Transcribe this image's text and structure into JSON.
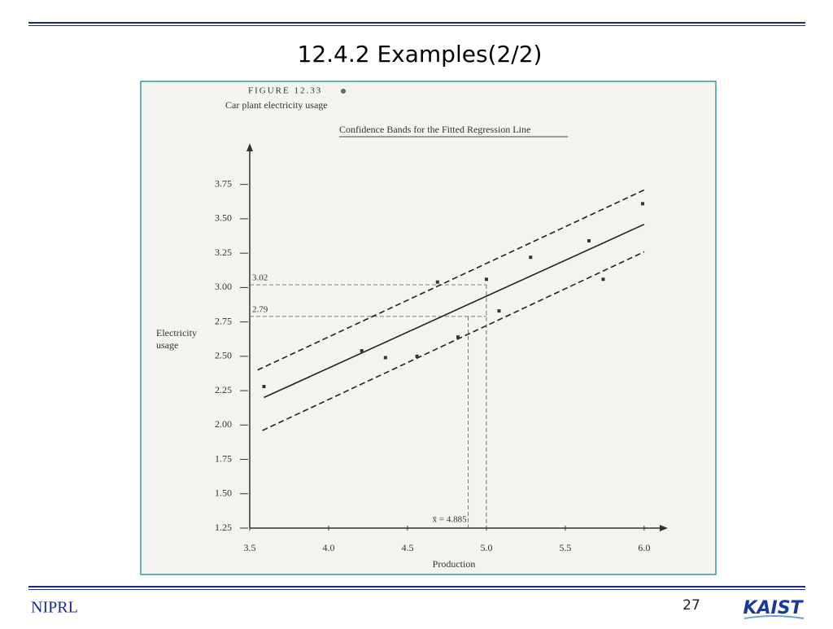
{
  "slide": {
    "title": "12.4.2 Examples(2/2)",
    "footer_left": "NIPRL",
    "page_number": "27",
    "logo": "KAIST"
  },
  "chart_data": {
    "type": "scatter",
    "figure_label": "FIGURE 12.33",
    "subtitle": "Car plant electricity usage",
    "title": "Confidence Bands for the Fitted Regression Line",
    "ylabel": [
      "Electricity",
      "usage"
    ],
    "xlabel": "Production",
    "xlim": [
      3.5,
      6.15
    ],
    "ylim": [
      1.25,
      4.05
    ],
    "xticks": [
      3.5,
      {
        "value": 4,
        "label": "4.0"
      },
      4.5,
      {
        "value": 5,
        "label": "5.0"
      },
      5.5,
      {
        "value": 6,
        "label": "6.0"
      }
    ],
    "yticks": [
      1.25,
      {
        "value": 1.5,
        "label": "1.50"
      },
      1.75,
      {
        "value": 2,
        "label": "2.00"
      },
      2.25,
      {
        "value": 2.5,
        "label": "2.50"
      },
      2.75,
      {
        "value": 3,
        "label": "3.00"
      },
      3.25,
      {
        "value": 3.5,
        "label": "3.50"
      },
      3.75
    ],
    "points": {
      "color": "#333333",
      "x": [
        3.59,
        4.21,
        4.36,
        4.56,
        4.69,
        4.82,
        5.0,
        5.08,
        5.28,
        5.65,
        5.74,
        5.99
      ],
      "values": [
        2.28,
        2.54,
        2.49,
        2.5,
        3.04,
        2.64,
        3.06,
        2.83,
        3.22,
        3.34,
        3.06,
        3.61
      ]
    },
    "fitted_line": {
      "color": "#222222",
      "x": [
        3.59,
        6.0
      ],
      "values": [
        2.2,
        3.46
      ]
    },
    "upper_band": {
      "color": "#222222",
      "x": [
        3.55,
        6.0
      ],
      "values": [
        2.4,
        3.71
      ]
    },
    "lower_band": {
      "color": "#222222",
      "x": [
        3.58,
        6.0
      ],
      "values": [
        1.96,
        3.26
      ]
    },
    "reference_y": [
      3.02,
      2.79
    ],
    "reference_x": [
      {
        "value": 4.885,
        "label": "x̄ = 4.885"
      },
      5
    ]
  }
}
